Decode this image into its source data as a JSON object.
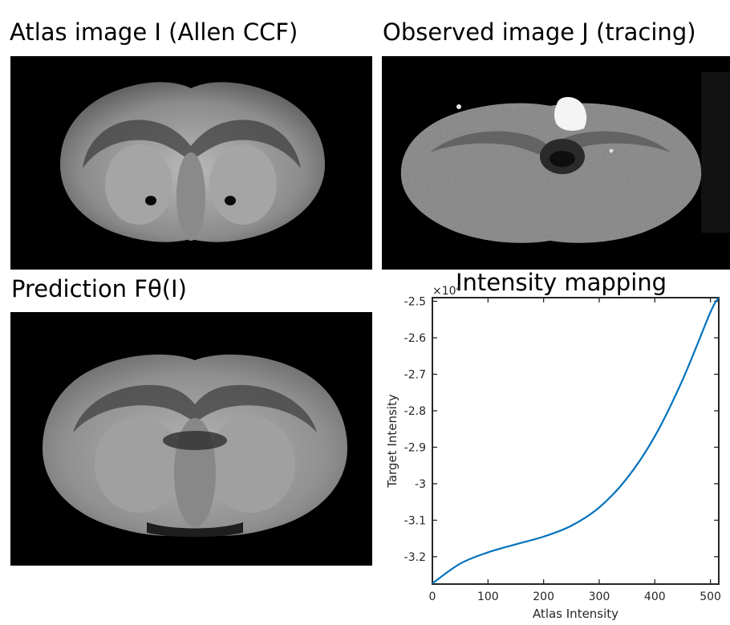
{
  "panels": {
    "atlas_title": "Atlas image I (Allen CCF)",
    "observed_title": "Observed image J (tracing)",
    "prediction_title": "Prediction Fθ(I)"
  },
  "chart_data": {
    "type": "line",
    "title": "Intensity mapping",
    "xlabel": "Atlas Intensity",
    "ylabel": "Target Intensity",
    "y_exponent_label": "×10⁴",
    "xlim": [
      0,
      515
    ],
    "ylim": [
      -3.275,
      -2.49
    ],
    "xticks": [
      0,
      100,
      200,
      300,
      400,
      500
    ],
    "xtick_labels": [
      "0",
      "100",
      "200",
      "300",
      "400",
      "500"
    ],
    "yticks": [
      -2.5,
      -2.6,
      -2.7,
      -2.8,
      -2.9,
      -3.0,
      -3.1,
      -3.2
    ],
    "ytick_labels": [
      "-2.5",
      "-2.6",
      "-2.7",
      "-2.8",
      "-2.9",
      "-3",
      "-3.1",
      "-3.2"
    ],
    "grid": false,
    "series": [
      {
        "color": "#0072bd",
        "x": [
          0,
          50,
          100,
          150,
          200,
          250,
          300,
          350,
          400,
          450,
          500,
          515
        ],
        "y": [
          -3.273,
          -3.219,
          -3.188,
          -3.166,
          -3.145,
          -3.115,
          -3.065,
          -2.985,
          -2.87,
          -2.715,
          -2.53,
          -2.49
        ]
      }
    ]
  }
}
